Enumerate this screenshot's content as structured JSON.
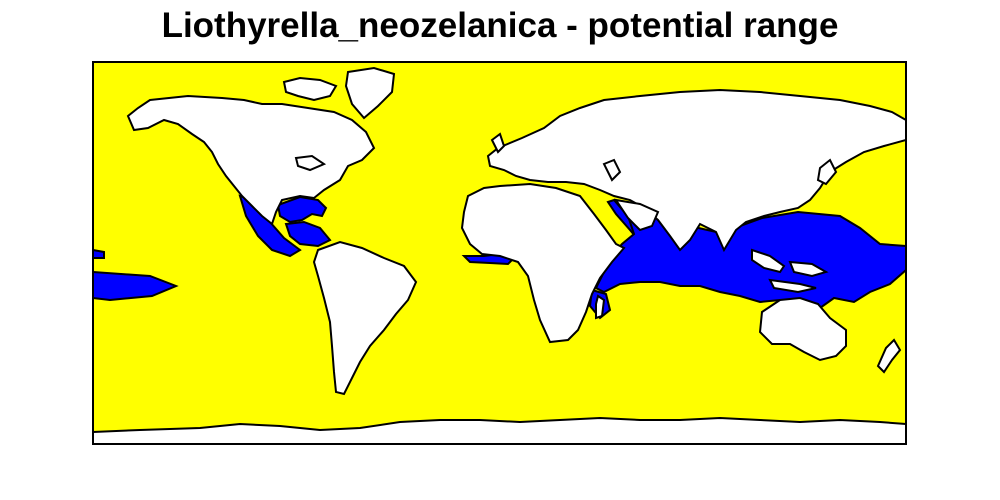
{
  "title": "Liothyrella_neozelanica - potential range",
  "colors": {
    "ocean": "#ffff00",
    "potential_range": "#0000ff",
    "land": "#ffffff",
    "outline": "#000000"
  }
}
